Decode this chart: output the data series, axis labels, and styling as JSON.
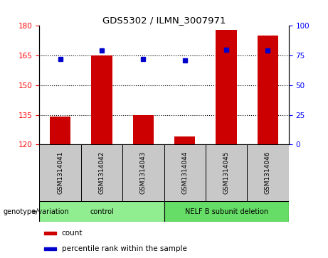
{
  "title": "GDS5302 / ILMN_3007971",
  "samples": [
    "GSM1314041",
    "GSM1314042",
    "GSM1314043",
    "GSM1314044",
    "GSM1314045",
    "GSM1314046"
  ],
  "counts": [
    134,
    165,
    135,
    124,
    178,
    175
  ],
  "percentile_ranks": [
    72,
    79,
    72,
    71,
    80,
    79
  ],
  "ylim_left": [
    120,
    180
  ],
  "ylim_right": [
    0,
    100
  ],
  "yticks_left": [
    120,
    135,
    150,
    165,
    180
  ],
  "yticks_right": [
    0,
    25,
    50,
    75,
    100
  ],
  "bar_color": "#CC0000",
  "dot_color": "#0000CC",
  "sample_box_color": "#C8C8C8",
  "control_group_color": "#90EE90",
  "nelf_group_color": "#66DD66",
  "group_label": "genotype/variation",
  "groups": [
    {
      "label": "control",
      "start": 0,
      "end": 2
    },
    {
      "label": "NELF B subunit deletion",
      "start": 3,
      "end": 5
    }
  ],
  "legend_items": [
    {
      "color": "#CC0000",
      "label": "count"
    },
    {
      "color": "#0000CC",
      "label": "percentile rank within the sample"
    }
  ]
}
